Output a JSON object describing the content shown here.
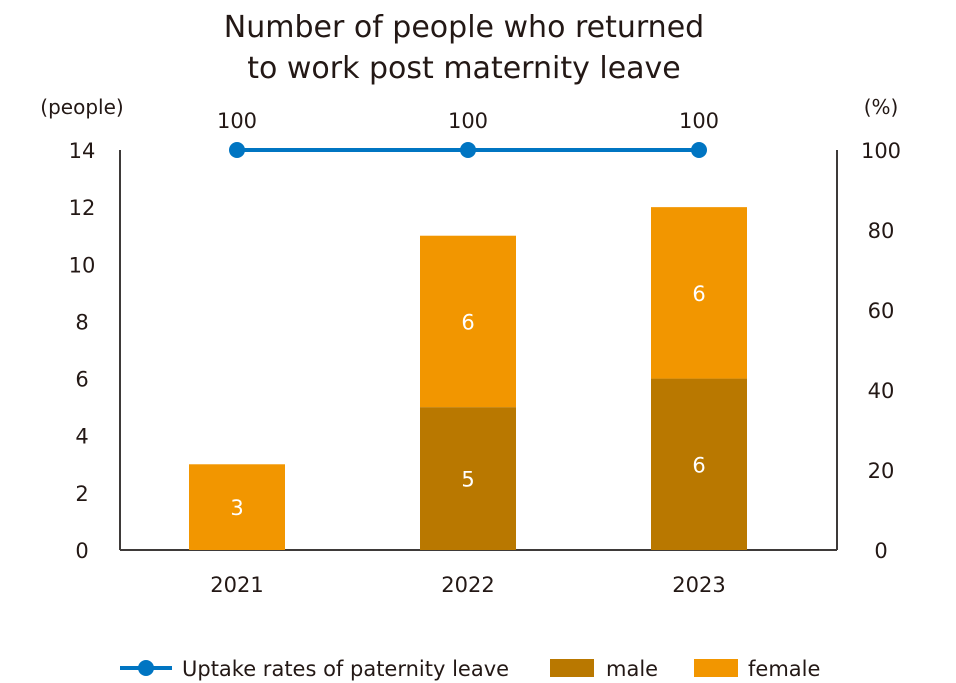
{
  "chart_data": {
    "type": "bar",
    "title": "Number of people who returned to work post maternity leave",
    "title_lines": [
      "Number of people who returned",
      "to work post maternity leave"
    ],
    "y_left_unit": "(people)",
    "y_right_unit": "(%)",
    "categories": [
      "2021",
      "2022",
      "2023"
    ],
    "y_left_lim": [
      0,
      14
    ],
    "y_left_ticks": [
      0,
      2,
      4,
      6,
      8,
      10,
      12,
      14
    ],
    "y_right_lim": [
      0,
      100
    ],
    "y_right_ticks": [
      0,
      20,
      40,
      60,
      80,
      100
    ],
    "stacked": true,
    "series": [
      {
        "name": "male",
        "type": "bar",
        "axis": "left",
        "values": [
          0,
          5,
          6
        ],
        "value_labels": [
          "",
          "5",
          "6"
        ]
      },
      {
        "name": "female",
        "type": "bar",
        "axis": "left",
        "values": [
          3,
          6,
          6
        ],
        "value_labels": [
          "3",
          "6",
          "6"
        ]
      },
      {
        "name": "Uptake rates of paternity leave",
        "type": "line",
        "axis": "right",
        "values": [
          100,
          100,
          100
        ],
        "value_labels": [
          "100",
          "100",
          "100"
        ]
      }
    ],
    "legend": [
      "Uptake rates of paternity leave",
      "male",
      "female"
    ],
    "legend_position": "bottom",
    "colors": {
      "male": "#b97800",
      "female": "#f29600",
      "line": "#0075c2",
      "axis": "#3e3a39",
      "text": "#231815"
    }
  }
}
